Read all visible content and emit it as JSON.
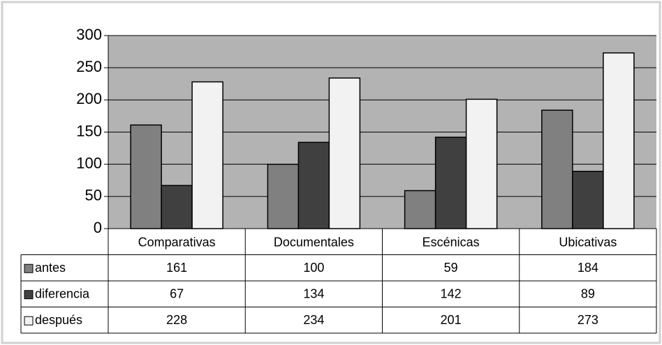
{
  "chart_data": {
    "type": "bar",
    "categories": [
      "Comparativas",
      "Documentales",
      "Escénicas",
      "Ubicativas"
    ],
    "series": [
      {
        "name": "antes",
        "color": "#808080",
        "values": [
          161,
          100,
          59,
          184
        ]
      },
      {
        "name": "diferencia",
        "color": "#404040",
        "values": [
          67,
          134,
          142,
          89
        ]
      },
      {
        "name": "después",
        "color": "#f2f2f2",
        "values": [
          228,
          234,
          201,
          273
        ]
      }
    ],
    "ylim": [
      0,
      300
    ],
    "yticks": [
      0,
      50,
      100,
      150,
      200,
      250,
      300
    ],
    "grid": true
  }
}
